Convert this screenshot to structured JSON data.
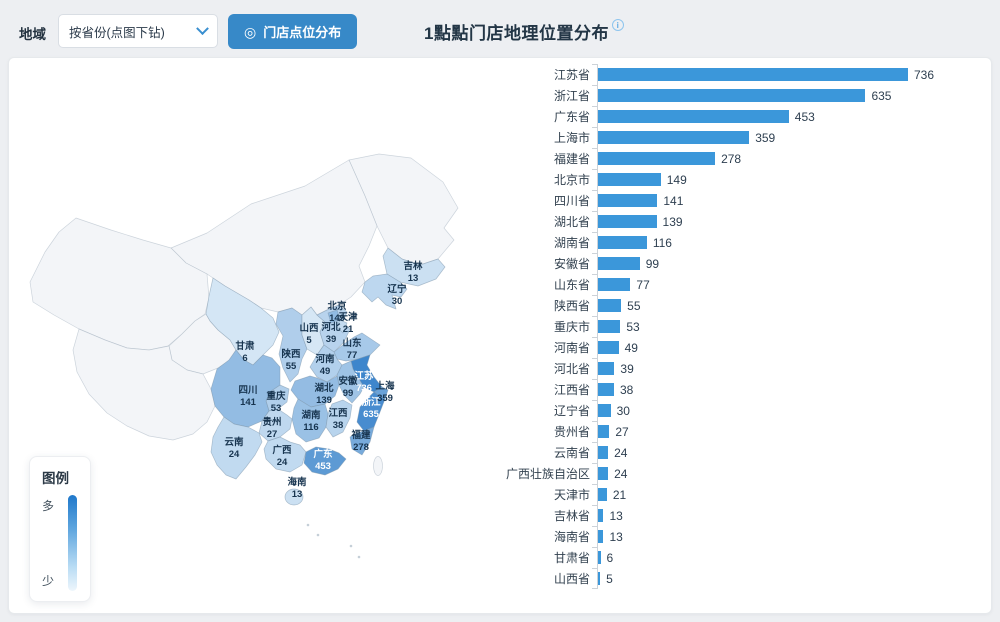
{
  "topbar": {
    "region_label": "地域",
    "dropdown_value": "按省份(点图下钻)",
    "button_label": "门店点位分布",
    "button_icon": "◎",
    "title": "1點點门店地理位置分布",
    "info_icon": "i"
  },
  "legend": {
    "title": "图例",
    "more": "多",
    "less": "少"
  },
  "colors": {
    "bar": "#3b97da",
    "button": "#3789c8",
    "map_dark": "#3e86cc",
    "map_light": "#eef6fc",
    "background": "#edeff2"
  },
  "chart_data": {
    "type": "bar",
    "orientation": "horizontal",
    "title": "1點點门店地理位置分布",
    "xlabel": "",
    "ylabel": "",
    "xlim": [
      0,
      736
    ],
    "grid": false,
    "legend_position": "none",
    "categories": [
      "江苏省",
      "浙江省",
      "广东省",
      "上海市",
      "福建省",
      "北京市",
      "四川省",
      "湖北省",
      "湖南省",
      "安徽省",
      "山东省",
      "陕西省",
      "重庆市",
      "河南省",
      "河北省",
      "江西省",
      "辽宁省",
      "贵州省",
      "云南省",
      "广西壮族自治区",
      "天津市",
      "吉林省",
      "海南省",
      "甘肃省",
      "山西省"
    ],
    "values": [
      736,
      635,
      453,
      359,
      278,
      149,
      141,
      139,
      116,
      99,
      77,
      55,
      53,
      49,
      39,
      38,
      30,
      27,
      24,
      24,
      21,
      13,
      13,
      6,
      5
    ]
  },
  "map": {
    "provinces": [
      {
        "id": "jiangsu",
        "label": "江苏",
        "value": 736
      },
      {
        "id": "zhejiang",
        "label": "浙江",
        "value": 635
      },
      {
        "id": "guangdong",
        "label": "广东",
        "value": 453
      },
      {
        "id": "shanghai",
        "label": "上海",
        "value": 359
      },
      {
        "id": "fujian",
        "label": "福建",
        "value": 278
      },
      {
        "id": "beijing",
        "label": "北京",
        "value": 149
      },
      {
        "id": "sichuan",
        "label": "四川",
        "value": 141
      },
      {
        "id": "hubei",
        "label": "湖北",
        "value": 139
      },
      {
        "id": "hunan",
        "label": "湖南",
        "value": 116
      },
      {
        "id": "anhui",
        "label": "安徽",
        "value": 99
      },
      {
        "id": "shandong",
        "label": "山东",
        "value": 77
      },
      {
        "id": "shaanxi",
        "label": "陕西",
        "value": 55
      },
      {
        "id": "chongqing",
        "label": "重庆",
        "value": 53
      },
      {
        "id": "henan",
        "label": "河南",
        "value": 49
      },
      {
        "id": "hebei",
        "label": "河北",
        "value": 39
      },
      {
        "id": "jiangxi",
        "label": "江西",
        "value": 38
      },
      {
        "id": "liaoning",
        "label": "辽宁",
        "value": 30
      },
      {
        "id": "guizhou",
        "label": "贵州",
        "value": 27
      },
      {
        "id": "yunnan",
        "label": "云南",
        "value": 24
      },
      {
        "id": "guangxi",
        "label": "广西",
        "value": 24
      },
      {
        "id": "tianjin",
        "label": "天津",
        "value": 21
      },
      {
        "id": "jilin",
        "label": "吉林",
        "value": 13
      },
      {
        "id": "hainan",
        "label": "海南",
        "value": 13
      },
      {
        "id": "gansu",
        "label": "甘肃",
        "value": 6
      },
      {
        "id": "shanxi",
        "label": "山西",
        "value": 5
      }
    ]
  }
}
